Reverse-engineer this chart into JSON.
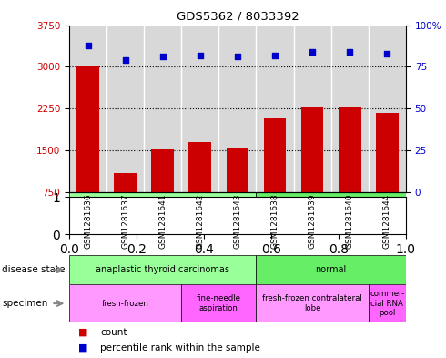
{
  "title": "GDS5362 / 8033392",
  "samples": [
    "GSM1281636",
    "GSM1281637",
    "GSM1281641",
    "GSM1281642",
    "GSM1281643",
    "GSM1281638",
    "GSM1281639",
    "GSM1281640",
    "GSM1281644"
  ],
  "counts": [
    3020,
    1100,
    1520,
    1650,
    1560,
    2080,
    2280,
    2290,
    2170
  ],
  "percentiles": [
    88,
    79,
    81,
    82,
    81,
    82,
    84,
    84,
    83
  ],
  "ylim_left": [
    750,
    3750
  ],
  "ylim_right": [
    0,
    100
  ],
  "yticks_left": [
    750,
    1500,
    2250,
    3000,
    3750
  ],
  "yticks_right": [
    0,
    25,
    50,
    75,
    100
  ],
  "ytick_right_labels": [
    "0",
    "25",
    "50",
    "75",
    "100%"
  ],
  "bar_color": "#cc0000",
  "dot_color": "#0000cc",
  "plot_bg": "#d8d8d8",
  "ds_items": [
    {
      "label": "anaplastic thyroid carcinomas",
      "start": 0,
      "end": 5,
      "color": "#99ff99"
    },
    {
      "label": "normal",
      "start": 5,
      "end": 9,
      "color": "#66ee66"
    }
  ],
  "sp_items": [
    {
      "label": "fresh-frozen",
      "start": 0,
      "end": 3,
      "color": "#ff99ff"
    },
    {
      "label": "fine-needle\naspiration",
      "start": 3,
      "end": 5,
      "color": "#ff66ff"
    },
    {
      "label": "fresh-frozen contralateral\nlobe",
      "start": 5,
      "end": 8,
      "color": "#ff99ff"
    },
    {
      "label": "commer-\ncial RNA\npool",
      "start": 8,
      "end": 9,
      "color": "#ff66ff"
    }
  ],
  "legend_items": [
    {
      "label": "count",
      "color": "#cc0000"
    },
    {
      "label": "percentile rank within the sample",
      "color": "#0000cc"
    }
  ]
}
